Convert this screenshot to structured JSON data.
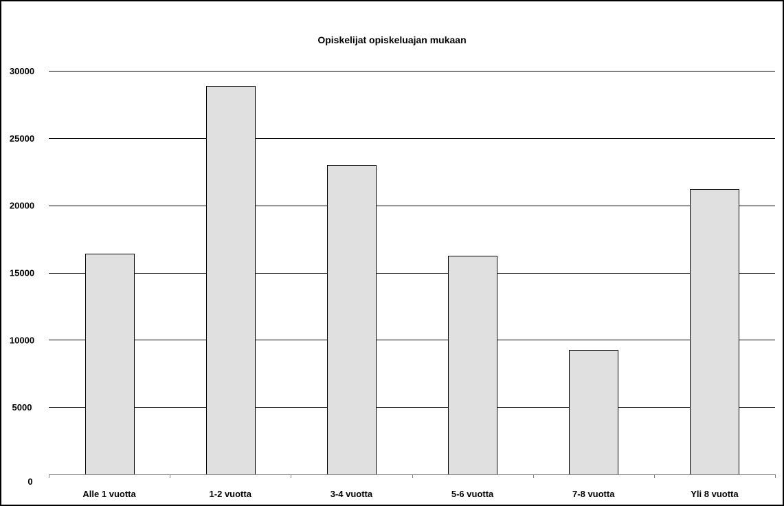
{
  "chart_data": {
    "type": "bar",
    "title": "Opiskelijat opiskeluajan mukaan",
    "xlabel": "",
    "ylabel": "",
    "categories": [
      "Alle 1 vuotta",
      "1-2 vuotta",
      "3-4 vuotta",
      "5-6 vuotta",
      "7-8 vuotta",
      "Yli 8 vuotta"
    ],
    "values": [
      16400,
      28900,
      23000,
      16250,
      9250,
      21200
    ],
    "ylim": [
      0,
      30000
    ],
    "yticks": [
      0,
      5000,
      10000,
      15000,
      20000,
      25000,
      30000
    ],
    "grid": true,
    "legend": "none",
    "colors": {
      "bar_fill": "#e0e0e0",
      "bar_stroke": "#000000",
      "gridline": "#000000",
      "axis": "#808080"
    }
  }
}
